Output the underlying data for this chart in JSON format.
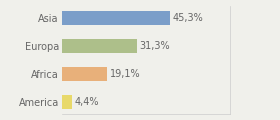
{
  "categories": [
    "Asia",
    "Europa",
    "Africa",
    "America"
  ],
  "values": [
    45.3,
    31.3,
    19.1,
    4.4
  ],
  "labels": [
    "45,3%",
    "31,3%",
    "19,1%",
    "4,4%"
  ],
  "bar_colors": [
    "#7b9ec9",
    "#adbf8a",
    "#e8b07a",
    "#e8d96a"
  ],
  "background_color": "#f0f0eb",
  "xlim": [
    0,
    70
  ],
  "label_fontsize": 7,
  "tick_fontsize": 7,
  "bar_height": 0.52,
  "figsize": [
    2.8,
    1.2
  ],
  "dpi": 100
}
